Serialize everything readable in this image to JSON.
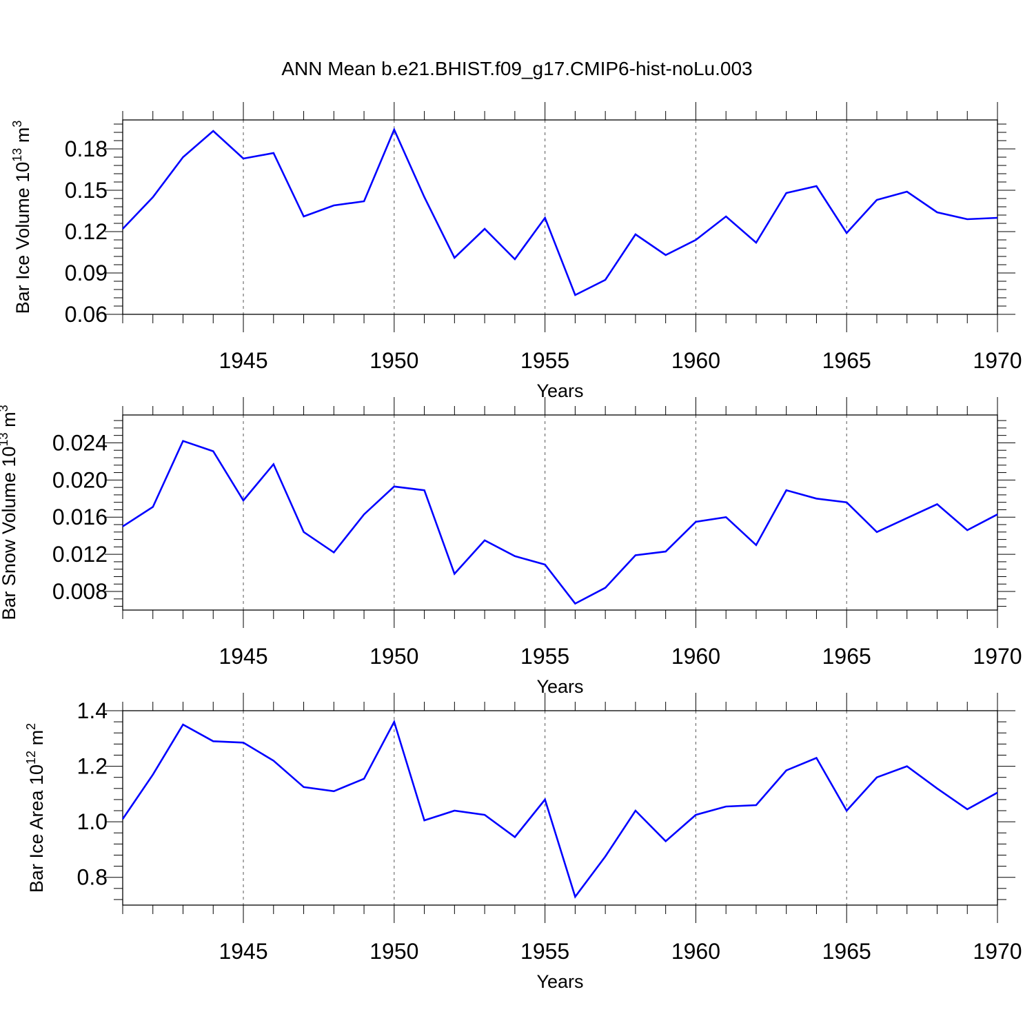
{
  "title": "ANN Mean b.e21.BHIST.f09_g17.CMIP6-hist-noLu.003",
  "colors": {
    "line": "#0000ff",
    "axis": "#000000",
    "grid": "#555555"
  },
  "chart_data": [
    {
      "type": "line",
      "xlabel": "Years",
      "ylabel": {
        "text": "Bar Ice Volume 10",
        "exp": "13",
        "unit": " m",
        "unit_exp": "3"
      },
      "xlim": [
        1941,
        1970
      ],
      "ylim": [
        0.06,
        0.201
      ],
      "yticks": [
        0.06,
        0.09,
        0.12,
        0.15,
        0.18
      ],
      "ytick_labels": [
        "0.06",
        "0.09",
        "0.12",
        "0.15",
        "0.18"
      ],
      "xticks": [
        1945,
        1950,
        1955,
        1960,
        1965,
        1970
      ],
      "xtick_labels": [
        "1945",
        "1950",
        "1955",
        "1960",
        "1965",
        "1970"
      ],
      "grid": "vertical dashed at major x ticks",
      "series": [
        {
          "x": [
            1941,
            1942,
            1943,
            1944,
            1945,
            1946,
            1947,
            1948,
            1949,
            1950,
            1951,
            1952,
            1953,
            1954,
            1955,
            1956,
            1957,
            1958,
            1959,
            1960,
            1961,
            1962,
            1963,
            1964,
            1965,
            1966,
            1967,
            1968,
            1969,
            1970
          ],
          "values": [
            0.122,
            0.145,
            0.174,
            0.193,
            0.173,
            0.177,
            0.131,
            0.139,
            0.142,
            0.194,
            0.145,
            0.101,
            0.122,
            0.1,
            0.13,
            0.074,
            0.085,
            0.118,
            0.103,
            0.114,
            0.131,
            0.112,
            0.148,
            0.153,
            0.119,
            0.143,
            0.149,
            0.134,
            0.129,
            0.13
          ]
        }
      ]
    },
    {
      "type": "line",
      "xlabel": "Years",
      "ylabel": {
        "text": "Bar Snow Volume 10",
        "exp": "13",
        "unit": " m",
        "unit_exp": "3"
      },
      "xlim": [
        1941,
        1970
      ],
      "ylim": [
        0.006,
        0.027
      ],
      "yticks": [
        0.008,
        0.012,
        0.016,
        0.02,
        0.024
      ],
      "ytick_labels": [
        "0.008",
        "0.012",
        "0.016",
        "0.020",
        "0.024"
      ],
      "xticks": [
        1945,
        1950,
        1955,
        1960,
        1965,
        1970
      ],
      "xtick_labels": [
        "1945",
        "1950",
        "1955",
        "1960",
        "1965",
        "1970"
      ],
      "grid": "vertical dashed at major x ticks",
      "series": [
        {
          "x": [
            1941,
            1942,
            1943,
            1944,
            1945,
            1946,
            1947,
            1948,
            1949,
            1950,
            1951,
            1952,
            1953,
            1954,
            1955,
            1956,
            1957,
            1958,
            1959,
            1960,
            1961,
            1962,
            1963,
            1964,
            1965,
            1966,
            1967,
            1968,
            1969,
            1970
          ],
          "values": [
            0.015,
            0.0171,
            0.0242,
            0.0231,
            0.0178,
            0.0217,
            0.0144,
            0.0122,
            0.0163,
            0.0193,
            0.0189,
            0.0099,
            0.0135,
            0.0118,
            0.0109,
            0.0067,
            0.0084,
            0.0119,
            0.0123,
            0.0155,
            0.016,
            0.013,
            0.0189,
            0.018,
            0.0176,
            0.0144,
            0.0159,
            0.0174,
            0.0146,
            0.0163
          ]
        }
      ]
    },
    {
      "type": "line",
      "xlabel": "Years",
      "ylabel": {
        "text": "Bar Ice Area 10",
        "exp": "12",
        "unit": " m",
        "unit_exp": "2"
      },
      "xlim": [
        1941,
        1970
      ],
      "ylim": [
        0.7,
        1.4
      ],
      "yticks": [
        0.8,
        1.0,
        1.2,
        1.4
      ],
      "ytick_labels": [
        "0.8",
        "1.0",
        "1.2",
        "1.4"
      ],
      "xticks": [
        1945,
        1950,
        1955,
        1960,
        1965,
        1970
      ],
      "xtick_labels": [
        "1945",
        "1950",
        "1955",
        "1960",
        "1965",
        "1970"
      ],
      "grid": "vertical dashed at major x ticks",
      "series": [
        {
          "x": [
            1941,
            1942,
            1943,
            1944,
            1945,
            1946,
            1947,
            1948,
            1949,
            1950,
            1951,
            1952,
            1953,
            1954,
            1955,
            1956,
            1957,
            1958,
            1959,
            1960,
            1961,
            1962,
            1963,
            1964,
            1965,
            1966,
            1967,
            1968,
            1969,
            1970
          ],
          "values": [
            1.01,
            1.17,
            1.35,
            1.29,
            1.285,
            1.22,
            1.125,
            1.11,
            1.155,
            1.36,
            1.005,
            1.04,
            1.025,
            0.945,
            1.08,
            0.73,
            0.875,
            1.04,
            0.93,
            1.025,
            1.055,
            1.06,
            1.185,
            1.23,
            1.04,
            1.16,
            1.2,
            1.12,
            1.045,
            1.105
          ]
        }
      ]
    }
  ]
}
